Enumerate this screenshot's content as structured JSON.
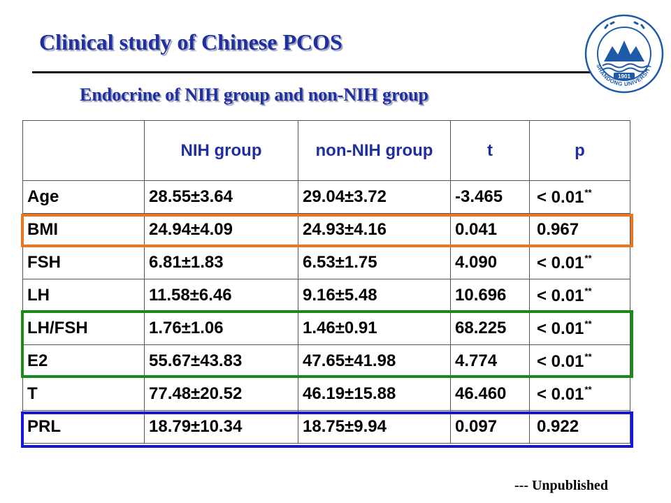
{
  "slide": {
    "title": "Clinical study of Chinese PCOS",
    "subtitle": "Endocrine of NIH group and non-NIH group",
    "footnote": "--- Unpublished",
    "title_color": "#1f2fa0"
  },
  "logo": {
    "icon": "shandong-university-emblem",
    "year": "1901",
    "name": "SHANDONG UNIVERSITY",
    "color": "#1f5aa8"
  },
  "table": {
    "headers": [
      "",
      "NIH group",
      "non-NIH group",
      "t",
      "p"
    ],
    "rows": [
      {
        "label": "Age",
        "nih": "28.55±3.64",
        "non_nih": "29.04±3.72",
        "t": "-3.465",
        "p": "< 0.01",
        "sig": "**"
      },
      {
        "label": "BMI",
        "nih": "24.94±4.09",
        "non_nih": "24.93±4.16",
        "t": "0.041",
        "p": "0.967",
        "sig": ""
      },
      {
        "label": "FSH",
        "nih": "6.81±1.83",
        "non_nih": "6.53±1.75",
        "t": "4.090",
        "p": "< 0.01",
        "sig": "**"
      },
      {
        "label": "LH",
        "nih": "11.58±6.46",
        "non_nih": "9.16±5.48",
        "t": "10.696",
        "p": "< 0.01",
        "sig": "**"
      },
      {
        "label": "LH/FSH",
        "nih": "1.76±1.06",
        "non_nih": "1.46±0.91",
        "t": "68.225",
        "p": "< 0.01",
        "sig": "**"
      },
      {
        "label": "E2",
        "nih": "55.67±43.83",
        "non_nih": "47.65±41.98",
        "t": "4.774",
        "p": "< 0.01",
        "sig": "**"
      },
      {
        "label": "T",
        "nih": "77.48±20.52",
        "non_nih": "46.19±15.88",
        "t": "46.460",
        "p": "< 0.01",
        "sig": "**"
      },
      {
        "label": "PRL",
        "nih": "18.79±10.34",
        "non_nih": "18.75±9.94",
        "t": "0.097",
        "p": "0.922",
        "sig": ""
      }
    ]
  },
  "highlights": [
    {
      "name": "highlight-bmi",
      "color": "#e87722"
    },
    {
      "name": "highlight-lhfsh-e2",
      "color": "#1a8a1a"
    },
    {
      "name": "highlight-prl",
      "color": "#1515e0"
    }
  ]
}
